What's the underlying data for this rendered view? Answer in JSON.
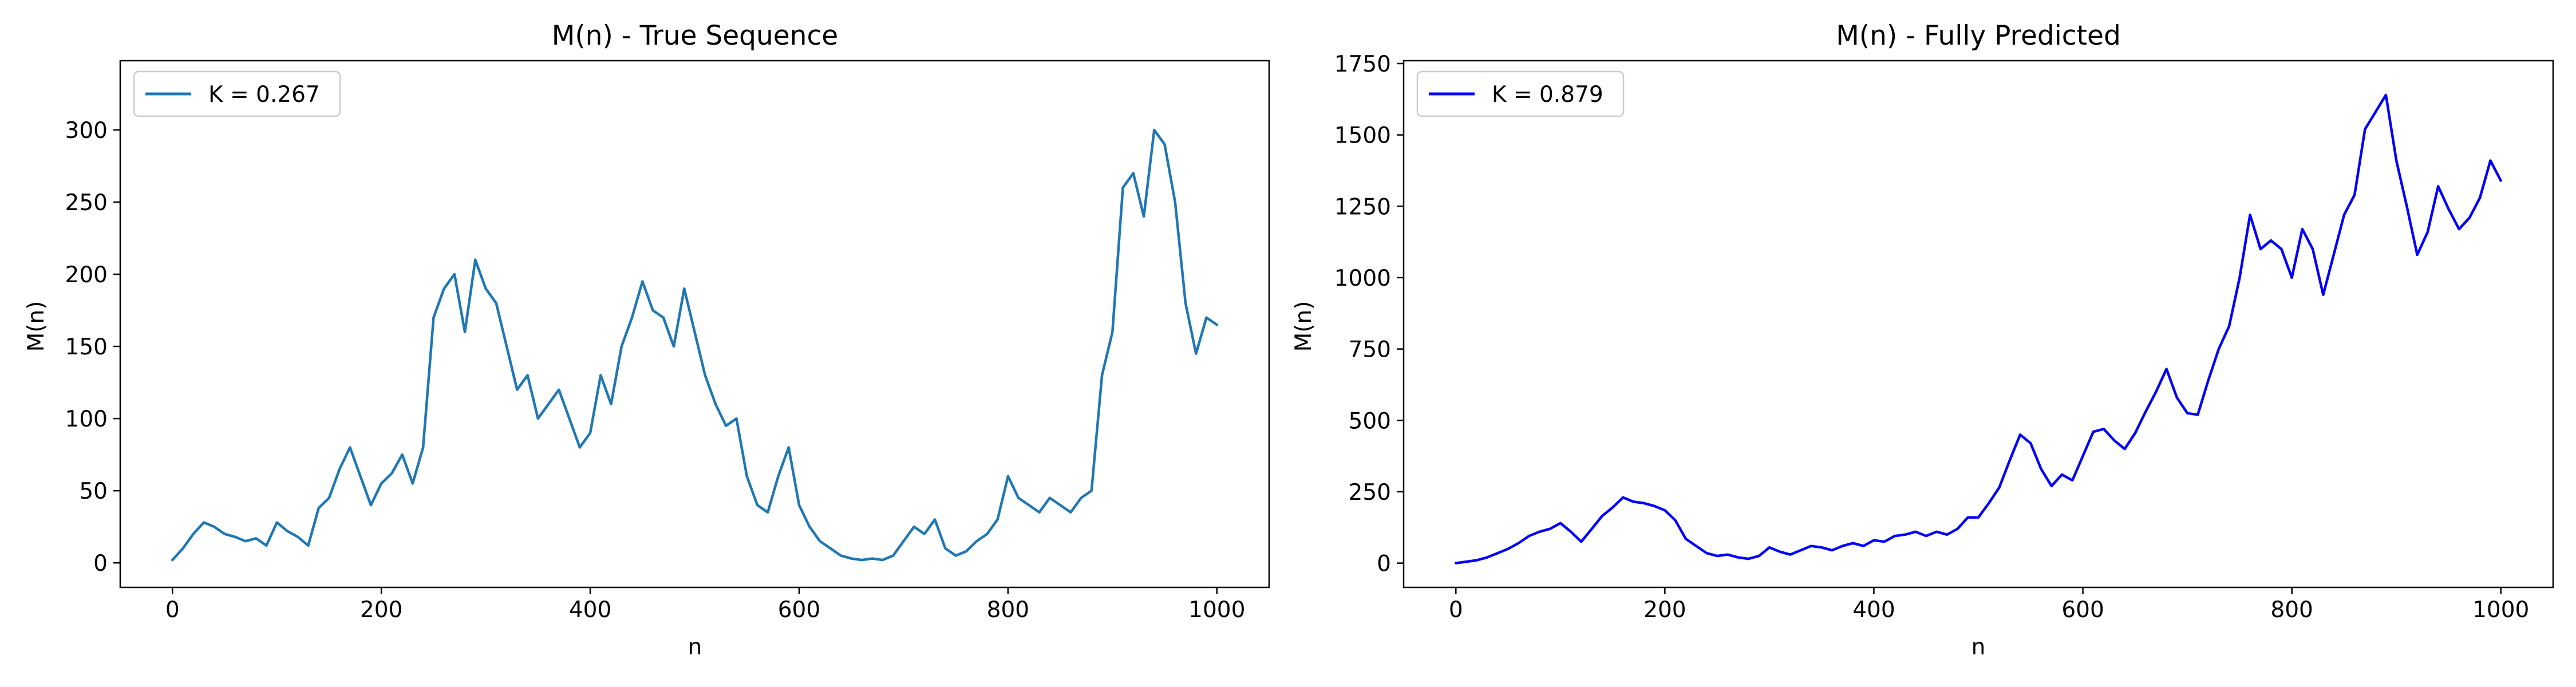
{
  "chart_data": [
    {
      "type": "line",
      "title": "M(n) - True Sequence",
      "xlabel": "n",
      "ylabel": "M(n)",
      "xlim": [
        -50,
        1050
      ],
      "ylim": [
        -17,
        348
      ],
      "xticks": [
        0,
        200,
        400,
        600,
        800,
        1000
      ],
      "yticks": [
        0,
        50,
        100,
        150,
        200,
        250,
        300
      ],
      "grid": false,
      "legend_position": "top-left",
      "series": [
        {
          "name": "K = 0.267",
          "color": "#1f77b4",
          "x": [
            0,
            10,
            20,
            30,
            40,
            50,
            60,
            70,
            80,
            90,
            100,
            110,
            120,
            130,
            140,
            150,
            160,
            170,
            180,
            190,
            200,
            210,
            220,
            230,
            240,
            250,
            260,
            270,
            280,
            290,
            300,
            310,
            320,
            330,
            340,
            350,
            360,
            370,
            380,
            390,
            400,
            410,
            420,
            430,
            440,
            450,
            460,
            470,
            480,
            490,
            500,
            510,
            520,
            530,
            540,
            550,
            560,
            570,
            580,
            590,
            600,
            610,
            620,
            630,
            640,
            650,
            660,
            670,
            680,
            690,
            700,
            710,
            720,
            730,
            740,
            750,
            760,
            770,
            780,
            790,
            800,
            810,
            820,
            830,
            840,
            850,
            860,
            870,
            880,
            890,
            900,
            910,
            920,
            930,
            940,
            950,
            960,
            970,
            980,
            990,
            1000
          ],
          "y": [
            2,
            10,
            20,
            28,
            25,
            20,
            18,
            15,
            17,
            12,
            28,
            22,
            18,
            12,
            38,
            45,
            65,
            80,
            60,
            40,
            55,
            62,
            75,
            55,
            80,
            170,
            190,
            200,
            160,
            210,
            190,
            180,
            150,
            120,
            130,
            100,
            110,
            120,
            100,
            80,
            90,
            130,
            110,
            150,
            170,
            195,
            175,
            170,
            150,
            190,
            160,
            130,
            110,
            95,
            100,
            60,
            40,
            35,
            60,
            80,
            40,
            25,
            15,
            10,
            5,
            3,
            2,
            3,
            2,
            5,
            15,
            25,
            20,
            30,
            10,
            5,
            8,
            15,
            20,
            30,
            60,
            45,
            40,
            35,
            45,
            40,
            35,
            45,
            50,
            130,
            160,
            260,
            270,
            240,
            300,
            290,
            250,
            180,
            145,
            170,
            165
          ]
        }
      ]
    },
    {
      "type": "line",
      "title": "M(n) - Fully Predicted",
      "xlabel": "n",
      "ylabel": "M(n)",
      "xlim": [
        -50,
        1050
      ],
      "ylim": [
        -85,
        1760
      ],
      "xticks": [
        0,
        200,
        400,
        600,
        800,
        1000
      ],
      "yticks": [
        0,
        250,
        500,
        750,
        1000,
        1250,
        1500,
        1750
      ],
      "grid": false,
      "legend_position": "top-left",
      "series": [
        {
          "name": "K = 0.879",
          "color": "#0000ff",
          "x": [
            0,
            10,
            20,
            30,
            40,
            50,
            60,
            70,
            80,
            90,
            100,
            110,
            120,
            130,
            140,
            150,
            160,
            170,
            180,
            190,
            200,
            210,
            220,
            230,
            240,
            250,
            260,
            270,
            280,
            290,
            300,
            310,
            320,
            330,
            340,
            350,
            360,
            370,
            380,
            390,
            400,
            410,
            420,
            430,
            440,
            450,
            460,
            470,
            480,
            490,
            500,
            510,
            520,
            530,
            540,
            550,
            560,
            570,
            580,
            590,
            600,
            610,
            620,
            630,
            640,
            650,
            660,
            670,
            680,
            690,
            700,
            710,
            720,
            730,
            740,
            750,
            760,
            770,
            780,
            790,
            800,
            810,
            820,
            830,
            840,
            850,
            860,
            870,
            880,
            890,
            900,
            910,
            920,
            930,
            940,
            950,
            960,
            970,
            980,
            990,
            1000
          ],
          "y": [
            0,
            5,
            10,
            20,
            35,
            50,
            70,
            95,
            110,
            120,
            140,
            110,
            75,
            120,
            165,
            195,
            230,
            215,
            210,
            200,
            185,
            150,
            85,
            60,
            35,
            25,
            30,
            20,
            15,
            25,
            55,
            40,
            30,
            45,
            60,
            55,
            45,
            60,
            70,
            60,
            80,
            75,
            95,
            100,
            110,
            95,
            110,
            100,
            120,
            160,
            160,
            210,
            265,
            360,
            450,
            420,
            330,
            270,
            310,
            290,
            375,
            460,
            470,
            430,
            400,
            455,
            530,
            600,
            680,
            580,
            525,
            520,
            640,
            750,
            830,
            1000,
            1220,
            1100,
            1130,
            1100,
            1000,
            1170,
            1100,
            940,
            1080,
            1220,
            1290,
            1520,
            1580,
            1640,
            1410,
            1250,
            1080,
            1160,
            1320,
            1240,
            1170,
            1210,
            1280,
            1410,
            1340
          ]
        }
      ]
    }
  ]
}
